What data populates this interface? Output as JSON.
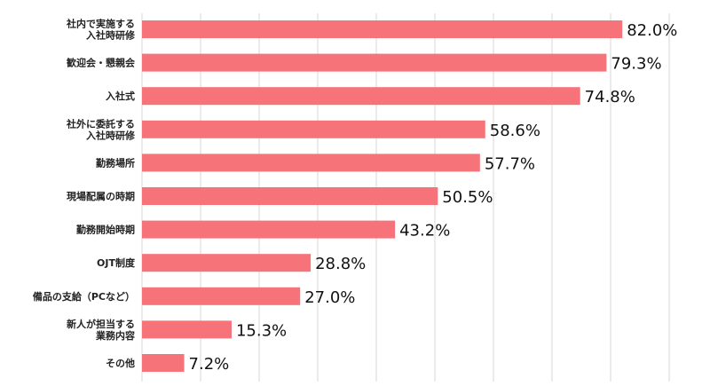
{
  "chart_data": {
    "type": "bar",
    "orientation": "horizontal",
    "categories": [
      [
        "社内で実施する",
        "入社時研修"
      ],
      [
        "歓迎会・懇親会"
      ],
      [
        "入社式"
      ],
      [
        "社外に委託する",
        "入社時研修"
      ],
      [
        "勤務場所"
      ],
      [
        "現場配属の時期"
      ],
      [
        "勤務開始時期"
      ],
      [
        "OJT制度"
      ],
      [
        "備品の支給（PCなど）"
      ],
      [
        "新人が担当する",
        "業務内容"
      ],
      [
        "その他"
      ]
    ],
    "values": [
      82.0,
      79.3,
      74.8,
      58.6,
      57.7,
      50.5,
      43.2,
      28.8,
      27.0,
      15.3,
      7.2
    ],
    "value_labels": [
      "82.0%",
      "79.3%",
      "74.8%",
      "58.6%",
      "57.7%",
      "50.5%",
      "43.2%",
      "28.8%",
      "27.0%",
      "15.3%",
      "7.2%"
    ],
    "xlim": [
      0,
      90
    ],
    "grid": true,
    "bar_color": "#f7737a",
    "grid_color": "#d7d7d7"
  }
}
